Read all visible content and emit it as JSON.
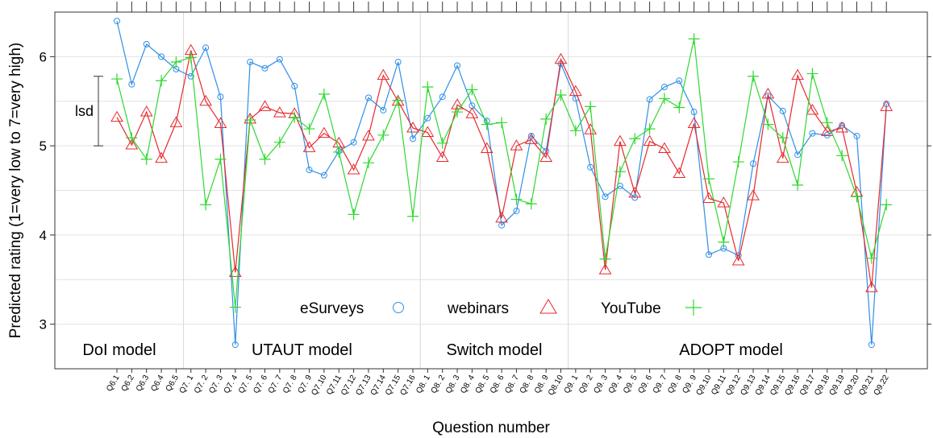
{
  "chart_data": {
    "type": "line",
    "x_label": "Question number",
    "y_label": "Predicted rating (1=very low to 7=very high)",
    "categories": [
      "Q6.1",
      "Q6.2",
      "Q6.3",
      "Q6.4",
      "Q6.5",
      "Q7. 1",
      "Q7. 2",
      "Q7. 3",
      "Q7. 4",
      "Q7. 5",
      "Q7. 6",
      "Q7. 7",
      "Q7. 8",
      "Q7. 9",
      "Q7.10",
      "Q7.11",
      "Q7.12",
      "Q7.13",
      "Q7.14",
      "Q7.15",
      "Q7.16",
      "Q8. 1",
      "Q8. 2",
      "Q8. 3",
      "Q8. 4",
      "Q8. 5",
      "Q8. 6",
      "Q8. 7",
      "Q8. 8",
      "Q8. 9",
      "Q8.10",
      "Q9. 1",
      "Q9. 2",
      "Q9. 3",
      "Q9. 4",
      "Q9. 5",
      "Q9. 6",
      "Q9. 7",
      "Q9. 8",
      "Q9. 9",
      "Q9.10",
      "Q9.11",
      "Q9.12",
      "Q9.13",
      "Q9.14",
      "Q9.15",
      "Q9.16",
      "Q9.17",
      "Q9.18",
      "Q9.19",
      "Q9.20",
      "Q9.21",
      "Q9.22"
    ],
    "series": [
      {
        "name": "eSurveys",
        "color": "#2f8fe8",
        "marker": "circle",
        "values": [
          6.4,
          5.69,
          6.14,
          6.0,
          5.86,
          5.78,
          6.1,
          5.55,
          2.77,
          5.94,
          5.87,
          5.97,
          5.67,
          4.73,
          4.67,
          4.94,
          5.04,
          5.54,
          5.4,
          5.94,
          5.08,
          5.31,
          5.55,
          5.9,
          5.45,
          5.28,
          4.11,
          4.27,
          5.11,
          4.94,
          5.92,
          5.53,
          4.76,
          4.43,
          4.55,
          4.42,
          5.52,
          5.66,
          5.73,
          5.38,
          3.78,
          3.85,
          3.77,
          4.8,
          5.56,
          5.39,
          4.9,
          5.14,
          5.12,
          5.23,
          5.11,
          2.77,
          5.47
        ]
      },
      {
        "name": "webinars",
        "color": "#e8282c",
        "marker": "triangle",
        "values": [
          5.32,
          5.01,
          5.38,
          4.86,
          5.26,
          6.07,
          5.5,
          5.25,
          3.58,
          5.3,
          5.44,
          5.37,
          5.36,
          4.98,
          5.14,
          5.03,
          4.73,
          5.11,
          5.79,
          5.5,
          5.2,
          5.15,
          4.87,
          5.46,
          5.36,
          4.97,
          4.19,
          5.0,
          5.07,
          4.87,
          5.97,
          5.61,
          5.18,
          3.61,
          5.05,
          4.47,
          5.05,
          4.97,
          4.69,
          5.25,
          4.41,
          4.36,
          3.71,
          4.44,
          5.58,
          4.86,
          5.79,
          5.4,
          5.16,
          5.2,
          4.48,
          3.41,
          5.44
        ]
      },
      {
        "name": "YouTube",
        "color": "#2ed82e",
        "marker": "plus",
        "values": [
          5.75,
          5.09,
          4.85,
          5.73,
          5.94,
          5.99,
          4.34,
          4.85,
          3.19,
          5.29,
          4.85,
          5.04,
          5.32,
          5.19,
          5.58,
          4.93,
          4.23,
          4.81,
          5.12,
          5.51,
          4.21,
          5.66,
          5.03,
          5.38,
          5.63,
          5.24,
          5.26,
          4.4,
          4.35,
          5.3,
          5.57,
          5.17,
          5.44,
          3.73,
          4.71,
          5.08,
          5.19,
          5.53,
          5.43,
          6.2,
          4.63,
          3.92,
          4.82,
          5.78,
          5.24,
          5.09,
          4.56,
          5.81,
          5.26,
          4.89,
          4.43,
          3.74,
          4.34
        ]
      }
    ],
    "ylim": [
      2.5,
      6.5
    ],
    "yticks": [
      3,
      4,
      5,
      6
    ],
    "gridlines": [
      3,
      3.5,
      4,
      4.5,
      5,
      5.5,
      6
    ],
    "groups": [
      {
        "label": "DoI model",
        "first": "Q6.1",
        "last": "Q6.5"
      },
      {
        "label": "UTAUT model",
        "first": "Q7. 1",
        "last": "Q7.16"
      },
      {
        "label": "Switch model",
        "first": "Q8. 1",
        "last": "Q8.10"
      },
      {
        "label": "ADOPT model",
        "first": "Q9. 1",
        "last": "Q9.22"
      }
    ],
    "annotations": [
      {
        "text": "lsd",
        "y_start": 5,
        "y_end": 5.78
      }
    ]
  }
}
